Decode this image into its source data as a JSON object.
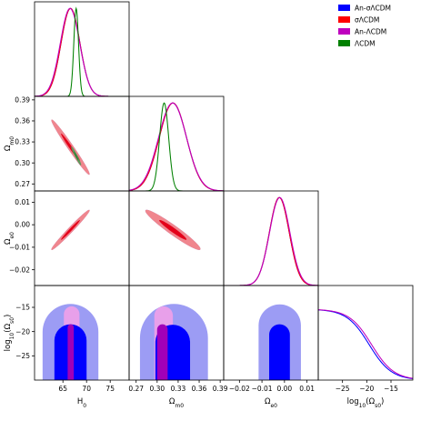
{
  "chart_data": {
    "type": "corner",
    "params": [
      "H_0",
      "Omega_m0",
      "Omega_e0",
      "log10_Omega_s0"
    ],
    "axis_labels": {
      "x": [
        "H",
        "Ω",
        "Ω",
        "log"
      ],
      "x_sub": [
        "0",
        "m0",
        "e0",
        "10"
      ],
      "x_suffix": [
        "",
        "",
        "",
        "(Ω"
      ],
      "x_suffix_sub": [
        "",
        "",
        "",
        "s0"
      ],
      "x_suffix_end": [
        "",
        "",
        "",
        ")"
      ],
      "y": [
        "",
        "Ω",
        "Ω",
        "log"
      ],
      "y_sub": [
        "",
        "m0",
        "e0",
        "10"
      ],
      "y_suffix": [
        "",
        "",
        "",
        "(Ω"
      ],
      "y_suffix_sub": [
        "",
        "",
        "",
        "s0"
      ],
      "y_suffix_end": [
        "",
        "",
        "",
        ")"
      ]
    },
    "ranges": [
      [
        59,
        79
      ],
      [
        0.26,
        0.395
      ],
      [
        -0.027,
        0.015
      ],
      [
        -30,
        -10.5
      ]
    ],
    "ticks": [
      [
        65,
        70,
        75
      ],
      [
        0.27,
        0.3,
        0.33,
        0.36,
        0.39
      ],
      [
        -0.02,
        -0.01,
        0.0,
        0.01
      ],
      [
        -25,
        -20,
        -15
      ]
    ],
    "tick_labels": [
      [
        "65",
        "70",
        "75"
      ],
      [
        "0.27",
        "0.30",
        "0.33",
        "0.36",
        "0.39"
      ],
      [
        "−0.02",
        "−0.01",
        "0.00",
        "0.01"
      ],
      [
        "−25",
        "−20",
        "−15"
      ]
    ],
    "legend": {
      "position": "top-right",
      "entries": [
        {
          "label": "An-σΛCDM",
          "color": "#0000ff"
        },
        {
          "label": "σΛCDM",
          "color": "#ff0000"
        },
        {
          "label": "An-ΛCDM",
          "color": "#bf00bf"
        },
        {
          "label": "ΛCDM",
          "color": "#008000"
        }
      ]
    },
    "marginals": [
      {
        "param": 0,
        "series": [
          {
            "model": "An-σΛCDM",
            "color": "#0000ff",
            "mean": 66.6,
            "sd": 2.0
          },
          {
            "model": "σΛCDM",
            "color": "#ff0000",
            "mean": 66.6,
            "sd": 2.0
          },
          {
            "model": "An-ΛCDM",
            "color": "#bf00bf",
            "mean": 66.5,
            "sd": 2.05
          },
          {
            "model": "ΛCDM",
            "color": "#008000",
            "mean": 67.8,
            "sd": 0.5
          }
        ]
      },
      {
        "param": 1,
        "series": [
          {
            "model": "An-σΛCDM",
            "color": "#0000ff",
            "mean": 0.3225,
            "sd": 0.0195
          },
          {
            "model": "σΛCDM",
            "color": "#ff0000",
            "mean": 0.3225,
            "sd": 0.0195
          },
          {
            "model": "An-ΛCDM",
            "color": "#bf00bf",
            "mean": 0.322,
            "sd": 0.02
          },
          {
            "model": "ΛCDM",
            "color": "#008000",
            "mean": 0.31,
            "sd": 0.0065
          }
        ]
      },
      {
        "param": 2,
        "series": [
          {
            "model": "An-σΛCDM",
            "color": "#0000ff",
            "mean": -0.0023,
            "sd": 0.0044
          },
          {
            "model": "σΛCDM",
            "color": "#ff0000",
            "mean": -0.0023,
            "sd": 0.0044
          },
          {
            "model": "An-ΛCDM",
            "color": "#bf00bf",
            "mean": -0.0021,
            "sd": 0.0045
          }
        ]
      },
      {
        "param": 3,
        "type": "sigmoid",
        "series": [
          {
            "model": "An-σΛCDM",
            "color": "#0000ff",
            "mid": -19.5,
            "scale": 2.3,
            "plateau": 0.75
          },
          {
            "model": "An-ΛCDM",
            "color": "#bf00bf",
            "mid": -19.0,
            "scale": 2.3,
            "plateau": 0.75
          }
        ]
      }
    ],
    "contours": [
      {
        "x": 0,
        "y": 1,
        "layers": [
          {
            "model": "An-σΛCDM",
            "level": "95%",
            "color": "#8f8ff0",
            "cx": 66.6,
            "cy": 0.3225,
            "sx": 4.0,
            "sy": 0.039,
            "rho": -0.985
          },
          {
            "model": "σΛCDM",
            "level": "95%",
            "color": "#f0868e",
            "cx": 66.6,
            "cy": 0.3225,
            "sx": 4.0,
            "sy": 0.039,
            "rho": -0.985
          },
          {
            "model": "σΛCDM",
            "level": "68%",
            "color": "#e4001a",
            "cx": 66.6,
            "cy": 0.3225,
            "sx": 2.0,
            "sy": 0.0195,
            "rho": -0.985
          },
          {
            "model": "ΛCDM",
            "level": "95%",
            "color": "#5e9a5e",
            "cx": 67.8,
            "cy": 0.31,
            "sx": 1.0,
            "sy": 0.013,
            "rho": -0.97
          },
          {
            "model": "ΛCDM",
            "level": "68%",
            "color": "#2a7a2a",
            "cx": 67.8,
            "cy": 0.31,
            "sx": 0.5,
            "sy": 0.0065,
            "rho": -0.97
          }
        ]
      },
      {
        "x": 0,
        "y": 2,
        "layers": [
          {
            "model": "An-σΛCDM",
            "level": "95%",
            "color": "#8f8ff0",
            "cx": 66.6,
            "cy": -0.0023,
            "sx": 4.0,
            "sy": 0.0088,
            "rho": 0.985
          },
          {
            "model": "σΛCDM",
            "level": "95%",
            "color": "#f0868e",
            "cx": 66.6,
            "cy": -0.0023,
            "sx": 4.0,
            "sy": 0.0088,
            "rho": 0.985
          },
          {
            "model": "σΛCDM",
            "level": "68%",
            "color": "#e4001a",
            "cx": 66.6,
            "cy": -0.0023,
            "sx": 2.0,
            "sy": 0.0044,
            "rho": 0.985
          }
        ]
      },
      {
        "x": 1,
        "y": 2,
        "layers": [
          {
            "model": "An-σΛCDM",
            "level": "95%",
            "color": "#8f8ff0",
            "cx": 0.3225,
            "cy": -0.0023,
            "sx": 0.039,
            "sy": 0.0088,
            "rho": -0.96
          },
          {
            "model": "σΛCDM",
            "level": "95%",
            "color": "#f0868e",
            "cx": 0.3225,
            "cy": -0.0023,
            "sx": 0.039,
            "sy": 0.0088,
            "rho": -0.96
          },
          {
            "model": "σΛCDM",
            "level": "68%",
            "color": "#e4001a",
            "cx": 0.3225,
            "cy": -0.0023,
            "sx": 0.0195,
            "sy": 0.0044,
            "rho": -0.96
          }
        ]
      }
    ],
    "log_panels": [
      {
        "x": 0,
        "layers": [
          {
            "model": "An-σΛCDM",
            "level": "95%",
            "color": "#9c9cf4",
            "x0": 60.7,
            "x1": 72.5,
            "top": -14.3
          },
          {
            "model": "An-ΛCDM",
            "level": "95%",
            "color": "#e8a0ea",
            "x0": 65.2,
            "x1": 68.5,
            "top": -14.8
          },
          {
            "model": "An-σΛCDM",
            "level": "68%",
            "color": "#0000ff",
            "x0": 63.2,
            "x1": 70.0,
            "top": -18.5
          },
          {
            "model": "An-ΛCDM",
            "level": "68%",
            "color": "#a000b8",
            "x0": 66.0,
            "x1": 67.3,
            "top": -18.5
          }
        ]
      },
      {
        "x": 1,
        "layers": [
          {
            "model": "An-σΛCDM",
            "level": "95%",
            "color": "#9c9cf4",
            "x0": 0.2755,
            "x1": 0.3725,
            "top": -14.3
          },
          {
            "model": "An-ΛCDM",
            "level": "95%",
            "color": "#e8a0ea",
            "x0": 0.296,
            "x1": 0.3225,
            "top": -14.8
          },
          {
            "model": "An-σΛCDM",
            "level": "68%",
            "color": "#0000ff",
            "x0": 0.2975,
            "x1": 0.347,
            "top": -18.5
          },
          {
            "model": "An-ΛCDM",
            "level": "68%",
            "color": "#a000b8",
            "x0": 0.3,
            "x1": 0.315,
            "top": -18.5
          }
        ]
      },
      {
        "x": 2,
        "layers": [
          {
            "model": "An-σΛCDM",
            "level": "95%",
            "color": "#9c9cf4",
            "x0": -0.0115,
            "x1": 0.0073,
            "top": -14.3
          },
          {
            "model": "An-σΛCDM",
            "level": "68%",
            "color": "#0000ff",
            "x0": -0.0068,
            "x1": 0.0024,
            "top": -18.5
          }
        ]
      }
    ]
  }
}
